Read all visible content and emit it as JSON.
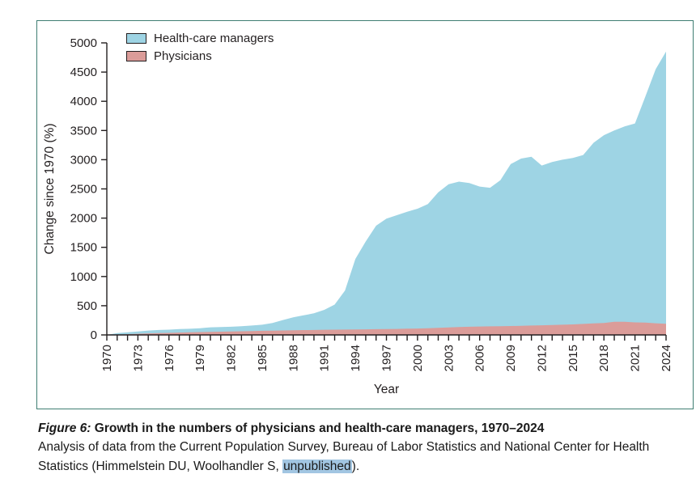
{
  "figure": {
    "caption_label": "Figure 6:",
    "caption_title": " Growth in the numbers of physicians and health-care managers, 1970–2024",
    "caption_body_before": "Analysis of data from the Current Population Survey, Bureau of Labor Statistics and National Center for Health Statistics (Himmelstein DU, Woolhandler S, ",
    "caption_highlight": "unpublished",
    "caption_body_after": ").",
    "border_color": "#3f7e72",
    "highlight_color": "#a2c6e2",
    "axis_color": "#231f20"
  },
  "chart_data": {
    "type": "area",
    "title": "",
    "xlabel": "Year",
    "ylabel": "Change since 1970 (%)",
    "ylim": [
      0,
      5000
    ],
    "ytick_step": 500,
    "xtick_label_every": 3,
    "grid": false,
    "legend_position": "top-left",
    "x": [
      1970,
      1971,
      1972,
      1973,
      1974,
      1975,
      1976,
      1977,
      1978,
      1979,
      1980,
      1981,
      1982,
      1983,
      1984,
      1985,
      1986,
      1987,
      1988,
      1989,
      1990,
      1991,
      1992,
      1993,
      1994,
      1995,
      1996,
      1997,
      1998,
      1999,
      2000,
      2001,
      2002,
      2003,
      2004,
      2005,
      2006,
      2007,
      2008,
      2009,
      2010,
      2011,
      2012,
      2013,
      2014,
      2015,
      2016,
      2017,
      2018,
      2019,
      2020,
      2021,
      2022,
      2023,
      2024
    ],
    "series": [
      {
        "name": "Health-care managers",
        "color": "#9ed4e4",
        "values": [
          0,
          30,
          45,
          60,
          75,
          85,
          90,
          100,
          105,
          115,
          130,
          135,
          140,
          150,
          160,
          175,
          205,
          255,
          300,
          335,
          370,
          430,
          520,
          760,
          1300,
          1600,
          1870,
          1990,
          2050,
          2110,
          2160,
          2240,
          2440,
          2580,
          2625,
          2600,
          2540,
          2520,
          2650,
          2925,
          3020,
          3050,
          2900,
          2960,
          3000,
          3030,
          3080,
          3290,
          3420,
          3500,
          3570,
          3620,
          4080,
          4550,
          4850
        ]
      },
      {
        "name": "Physicians",
        "color": "#db9c99",
        "values": [
          0,
          5,
          12,
          20,
          26,
          30,
          35,
          40,
          45,
          48,
          52,
          55,
          58,
          62,
          66,
          70,
          73,
          76,
          80,
          83,
          85,
          88,
          90,
          92,
          94,
          95,
          98,
          100,
          103,
          107,
          110,
          115,
          122,
          128,
          134,
          140,
          144,
          147,
          150,
          152,
          155,
          160,
          165,
          170,
          175,
          180,
          188,
          196,
          205,
          225,
          225,
          215,
          210,
          200,
          190
        ]
      }
    ]
  }
}
